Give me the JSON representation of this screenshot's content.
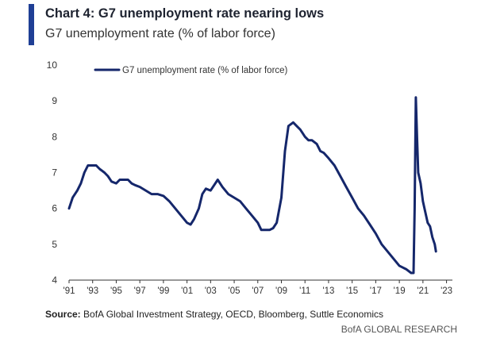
{
  "header": {
    "title": "Chart 4: G7 unemployment rate nearing lows",
    "subtitle": "G7 unemployment rate (% of labor force)"
  },
  "footer": {
    "source_label": "Source:",
    "source_text": "BofA Global Investment Strategy, OECD, Bloomberg, Suttle Economics",
    "branding": "BofA GLOBAL RESEARCH"
  },
  "colors": {
    "accent": "#1f3f95",
    "line": "#15276b"
  },
  "chart_data": {
    "type": "line",
    "title": "Chart 4: G7 unemployment rate nearing lows",
    "subtitle": "G7 unemployment rate (% of labor force)",
    "xlabel": "",
    "ylabel": "",
    "xlim": [
      1991,
      2023.5
    ],
    "ylim": [
      4,
      10
    ],
    "x_ticks": [
      1991,
      1993,
      1995,
      1997,
      1999,
      2001,
      2003,
      2005,
      2007,
      2009,
      2011,
      2013,
      2015,
      2017,
      2019,
      2021,
      2023
    ],
    "x_tick_labels": [
      "'91",
      "'93",
      "'95",
      "'97",
      "'99",
      "'01",
      "'03",
      "'05",
      "'07",
      "'09",
      "'11",
      "'13",
      "'15",
      "'17",
      "'19",
      "'21",
      "'23"
    ],
    "y_ticks": [
      4,
      5,
      6,
      7,
      8,
      9,
      10
    ],
    "y_tick_labels": [
      "4",
      "5",
      "6",
      "7",
      "8",
      "9",
      "10"
    ],
    "grid": false,
    "legend_position": "top-left",
    "series": [
      {
        "name": "G7 unemployment rate (% of labor force)",
        "x": [
          1991.0,
          1991.3,
          1991.7,
          1992.0,
          1992.3,
          1992.6,
          1993.0,
          1993.3,
          1993.6,
          1994.0,
          1994.3,
          1994.6,
          1995.0,
          1995.3,
          1995.6,
          1996.0,
          1996.3,
          1996.6,
          1997.0,
          1997.5,
          1998.0,
          1998.5,
          1999.0,
          1999.5,
          2000.0,
          2000.5,
          2001.0,
          2001.3,
          2001.6,
          2002.0,
          2002.3,
          2002.6,
          2003.0,
          2003.3,
          2003.6,
          2004.0,
          2004.5,
          2005.0,
          2005.5,
          2006.0,
          2006.5,
          2007.0,
          2007.3,
          2007.6,
          2008.0,
          2008.3,
          2008.6,
          2009.0,
          2009.3,
          2009.6,
          2010.0,
          2010.3,
          2010.6,
          2011.0,
          2011.3,
          2011.6,
          2012.0,
          2012.3,
          2012.6,
          2013.0,
          2013.5,
          2014.0,
          2014.5,
          2015.0,
          2015.5,
          2016.0,
          2016.5,
          2017.0,
          2017.5,
          2018.0,
          2018.5,
          2019.0,
          2019.3,
          2019.6,
          2020.0,
          2020.2,
          2020.3,
          2020.4,
          2020.5,
          2020.6,
          2020.8,
          2021.0,
          2021.2,
          2021.4,
          2021.6,
          2021.8,
          2022.0,
          2022.1
        ],
        "values": [
          6.0,
          6.3,
          6.5,
          6.7,
          7.0,
          7.2,
          7.2,
          7.2,
          7.1,
          7.0,
          6.9,
          6.75,
          6.7,
          6.8,
          6.8,
          6.8,
          6.7,
          6.65,
          6.6,
          6.5,
          6.4,
          6.4,
          6.35,
          6.2,
          6.0,
          5.8,
          5.6,
          5.55,
          5.7,
          6.0,
          6.4,
          6.55,
          6.5,
          6.65,
          6.8,
          6.6,
          6.4,
          6.3,
          6.2,
          6.0,
          5.8,
          5.6,
          5.4,
          5.4,
          5.4,
          5.45,
          5.6,
          6.3,
          7.6,
          8.3,
          8.4,
          8.3,
          8.2,
          8.0,
          7.9,
          7.9,
          7.8,
          7.6,
          7.55,
          7.4,
          7.2,
          6.9,
          6.6,
          6.3,
          6.0,
          5.8,
          5.55,
          5.3,
          5.0,
          4.8,
          4.6,
          4.4,
          4.35,
          4.3,
          4.2,
          4.2,
          6.0,
          9.1,
          8.0,
          7.0,
          6.7,
          6.2,
          5.9,
          5.6,
          5.5,
          5.2,
          5.0,
          4.8
        ]
      }
    ]
  }
}
